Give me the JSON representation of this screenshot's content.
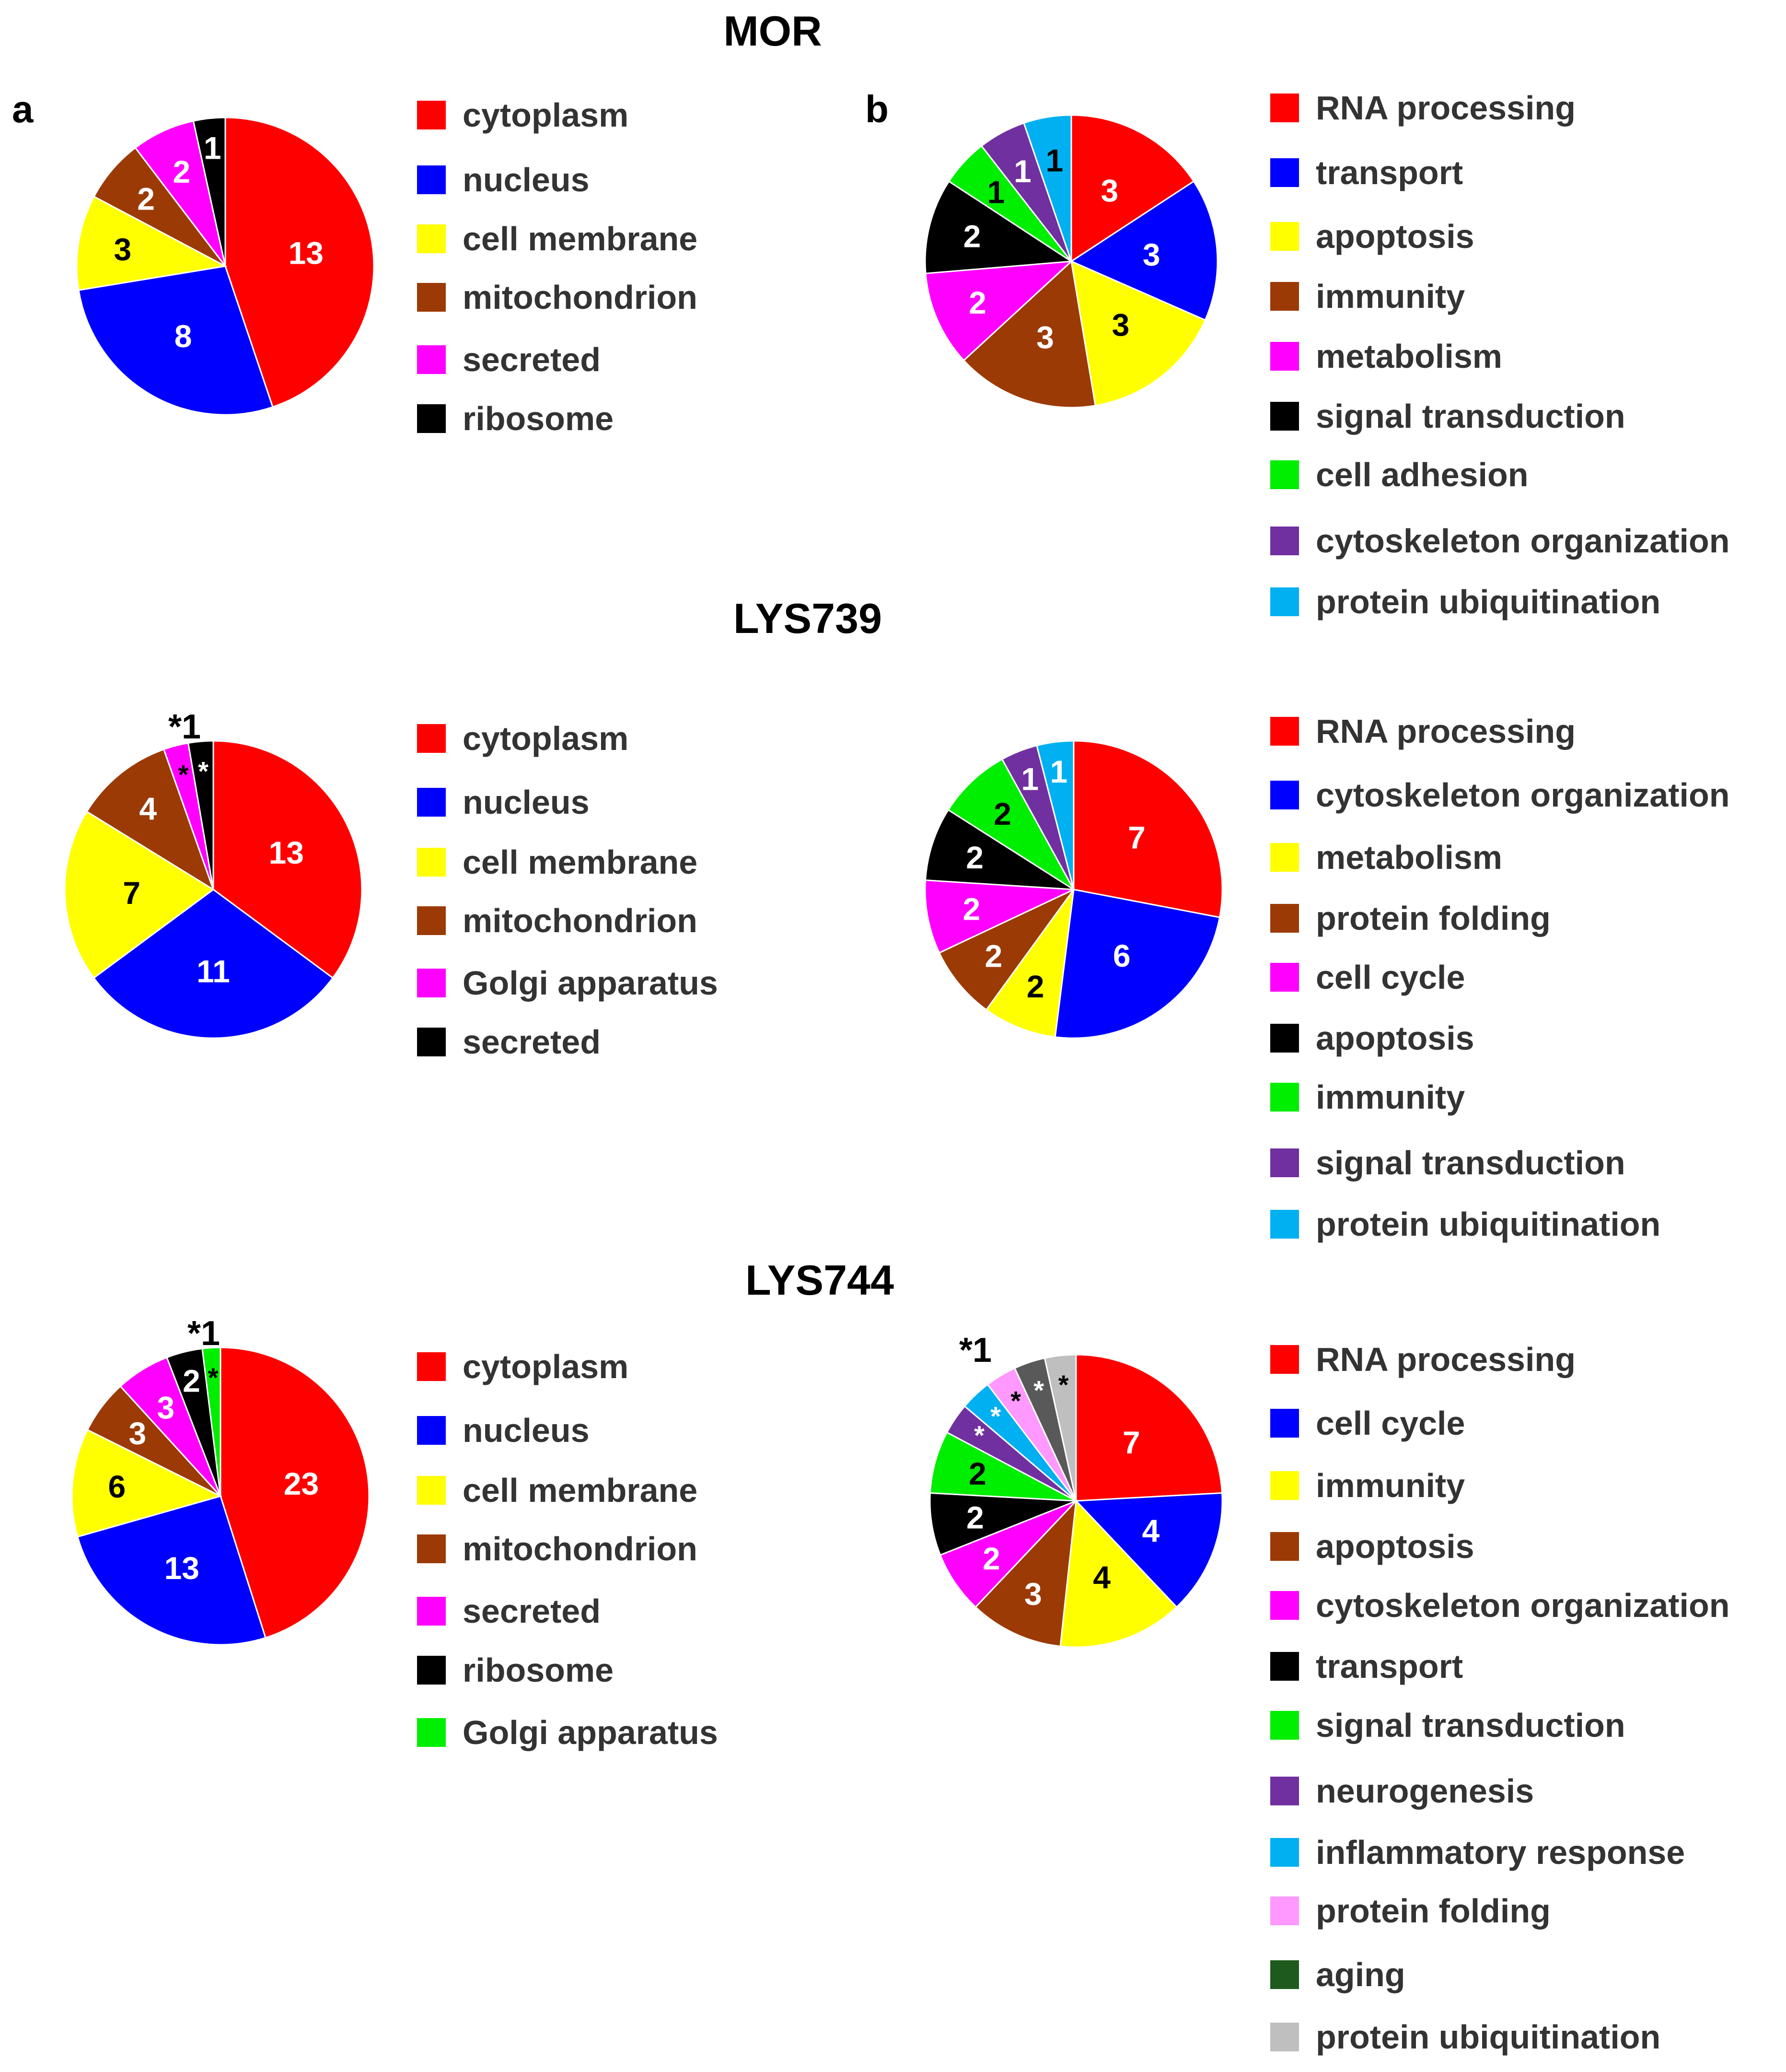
{
  "panel_labels": {
    "a": "a",
    "b": "b"
  },
  "colors": {
    "red": "#ff0000",
    "blue": "#0000ff",
    "yellow": "#ffff00",
    "brown": "#9c3a06",
    "magenta": "#ff00ff",
    "black": "#000000",
    "green": "#00ee00",
    "purple": "#7030a0",
    "cyan": "#00b0f0",
    "pink": "#ff99ff",
    "darkgreen": "#1e5a1e",
    "gray": "#bfbfbf",
    "darkgray": "#595959"
  },
  "chart_data": [
    {
      "type": "pie",
      "group": "MOR",
      "title": "MOR",
      "panel": "a",
      "slices": [
        {
          "label": "cytoplasm",
          "value": 13,
          "text": "13",
          "color": "#ff0000",
          "text_color": "#ffffff"
        },
        {
          "label": "nucleus",
          "value": 8,
          "text": "8",
          "color": "#0000ff",
          "text_color": "#ffffff"
        },
        {
          "label": "cell membrane",
          "value": 3,
          "text": "3",
          "color": "#ffff00",
          "text_color": "#000000"
        },
        {
          "label": "mitochondrion",
          "value": 2,
          "text": "2",
          "color": "#9c3a06",
          "text_color": "#ffffff"
        },
        {
          "label": "secreted",
          "value": 2,
          "text": "2",
          "color": "#ff00ff",
          "text_color": "#ffffff"
        },
        {
          "label": "ribosome",
          "value": 1,
          "text": "1",
          "color": "#000000",
          "text_color": "#ffffff"
        }
      ]
    },
    {
      "type": "pie",
      "group": "MOR",
      "panel": "b",
      "slices": [
        {
          "label": "RNA processing",
          "value": 3,
          "text": "3",
          "color": "#ff0000",
          "text_color": "#ffffff"
        },
        {
          "label": "transport",
          "value": 3,
          "text": "3",
          "color": "#0000ff",
          "text_color": "#ffffff"
        },
        {
          "label": "apoptosis",
          "value": 3,
          "text": "3",
          "color": "#ffff00",
          "text_color": "#000000"
        },
        {
          "label": "immunity",
          "value": 3,
          "text": "3",
          "color": "#9c3a06",
          "text_color": "#ffffff"
        },
        {
          "label": "metabolism",
          "value": 2,
          "text": "2",
          "color": "#ff00ff",
          "text_color": "#ffffff"
        },
        {
          "label": "signal transduction",
          "value": 2,
          "text": "2",
          "color": "#000000",
          "text_color": "#ffffff"
        },
        {
          "label": "cell adhesion",
          "value": 1,
          "text": "1",
          "color": "#00ee00",
          "text_color": "#000000"
        },
        {
          "label": "cytoskeleton organization",
          "value": 1,
          "text": "1",
          "color": "#7030a0",
          "text_color": "#ffffff"
        },
        {
          "label": "protein ubiquitination",
          "value": 1,
          "text": "1",
          "color": "#00b0f0",
          "text_color": "#000000"
        }
      ]
    },
    {
      "type": "pie",
      "group": "LYS739",
      "title": "LYS739",
      "panel": "a",
      "outside_note": "*1",
      "slices": [
        {
          "label": "cytoplasm",
          "value": 13,
          "text": "13",
          "color": "#ff0000",
          "text_color": "#ffffff"
        },
        {
          "label": "nucleus",
          "value": 11,
          "text": "11",
          "color": "#0000ff",
          "text_color": "#ffffff"
        },
        {
          "label": "cell membrane",
          "value": 7,
          "text": "7",
          "color": "#ffff00",
          "text_color": "#000000"
        },
        {
          "label": "mitochondrion",
          "value": 4,
          "text": "4",
          "color": "#9c3a06",
          "text_color": "#ffffff"
        },
        {
          "label": "Golgi apparatus",
          "value": 1,
          "text": "*",
          "color": "#ff00ff",
          "text_color": "#000000"
        },
        {
          "label": "secreted",
          "value": 1,
          "text": "*",
          "color": "#000000",
          "text_color": "#ffffff"
        }
      ]
    },
    {
      "type": "pie",
      "group": "LYS739",
      "panel": "b",
      "slices": [
        {
          "label": "RNA processing",
          "value": 7,
          "text": "7",
          "color": "#ff0000",
          "text_color": "#ffffff"
        },
        {
          "label": "cytoskeleton organization",
          "value": 6,
          "text": "6",
          "color": "#0000ff",
          "text_color": "#ffffff"
        },
        {
          "label": "metabolism",
          "value": 2,
          "text": "2",
          "color": "#ffff00",
          "text_color": "#000000"
        },
        {
          "label": "protein folding",
          "value": 2,
          "text": "2",
          "color": "#9c3a06",
          "text_color": "#ffffff"
        },
        {
          "label": "cell cycle",
          "value": 2,
          "text": "2",
          "color": "#ff00ff",
          "text_color": "#ffffff"
        },
        {
          "label": "apoptosis",
          "value": 2,
          "text": "2",
          "color": "#000000",
          "text_color": "#ffffff"
        },
        {
          "label": "immunity",
          "value": 2,
          "text": "2",
          "color": "#00ee00",
          "text_color": "#000000"
        },
        {
          "label": "signal transduction",
          "value": 1,
          "text": "1",
          "color": "#7030a0",
          "text_color": "#ffffff"
        },
        {
          "label": "protein ubiquitination",
          "value": 1,
          "text": "1",
          "color": "#00b0f0",
          "text_color": "#ffffff"
        }
      ]
    },
    {
      "type": "pie",
      "group": "LYS744",
      "title": "LYS744",
      "panel": "a",
      "outside_note": "*1",
      "slices": [
        {
          "label": "cytoplasm",
          "value": 23,
          "text": "23",
          "color": "#ff0000",
          "text_color": "#ffffff"
        },
        {
          "label": "nucleus",
          "value": 13,
          "text": "13",
          "color": "#0000ff",
          "text_color": "#ffffff"
        },
        {
          "label": "cell membrane",
          "value": 6,
          "text": "6",
          "color": "#ffff00",
          "text_color": "#000000"
        },
        {
          "label": "mitochondrion",
          "value": 3,
          "text": "3",
          "color": "#9c3a06",
          "text_color": "#ffffff"
        },
        {
          "label": "secreted",
          "value": 3,
          "text": "3",
          "color": "#ff00ff",
          "text_color": "#ffffff"
        },
        {
          "label": "ribosome",
          "value": 2,
          "text": "2",
          "color": "#000000",
          "text_color": "#ffffff"
        },
        {
          "label": "Golgi apparatus",
          "value": 1,
          "text": "*",
          "color": "#00ee00",
          "text_color": "#000000"
        }
      ]
    },
    {
      "type": "pie",
      "group": "LYS744",
      "panel": "b",
      "outside_note": "*1",
      "slices": [
        {
          "label": "RNA processing",
          "value": 7,
          "text": "7",
          "color": "#ff0000",
          "text_color": "#ffffff"
        },
        {
          "label": "cell cycle",
          "value": 4,
          "text": "4",
          "color": "#0000ff",
          "text_color": "#ffffff"
        },
        {
          "label": "immunity",
          "value": 4,
          "text": "4",
          "color": "#ffff00",
          "text_color": "#000000"
        },
        {
          "label": "apoptosis",
          "value": 3,
          "text": "3",
          "color": "#9c3a06",
          "text_color": "#ffffff"
        },
        {
          "label": "cytoskeleton organization",
          "value": 2,
          "text": "2",
          "color": "#ff00ff",
          "text_color": "#ffffff"
        },
        {
          "label": "transport",
          "value": 2,
          "text": "2",
          "color": "#000000",
          "text_color": "#ffffff"
        },
        {
          "label": "signal transduction",
          "value": 2,
          "text": "2",
          "color": "#00ee00",
          "text_color": "#000000"
        },
        {
          "label": "neurogenesis",
          "value": 1,
          "text": "*",
          "color": "#7030a0",
          "text_color": "#ffffff"
        },
        {
          "label": "inflammatory response",
          "value": 1,
          "text": "*",
          "color": "#00b0f0",
          "text_color": "#ffffff"
        },
        {
          "label": "protein folding",
          "value": 1,
          "text": "*",
          "color": "#ff99ff",
          "text_color": "#000000"
        },
        {
          "label": "aging",
          "value": 1,
          "text": "*",
          "color": "#595959",
          "text_color": "#ffffff",
          "legend_color": "#1e5a1e"
        },
        {
          "label": "protein ubiquitination",
          "value": 1,
          "text": "*",
          "color": "#bfbfbf",
          "text_color": "#000000"
        }
      ]
    }
  ]
}
